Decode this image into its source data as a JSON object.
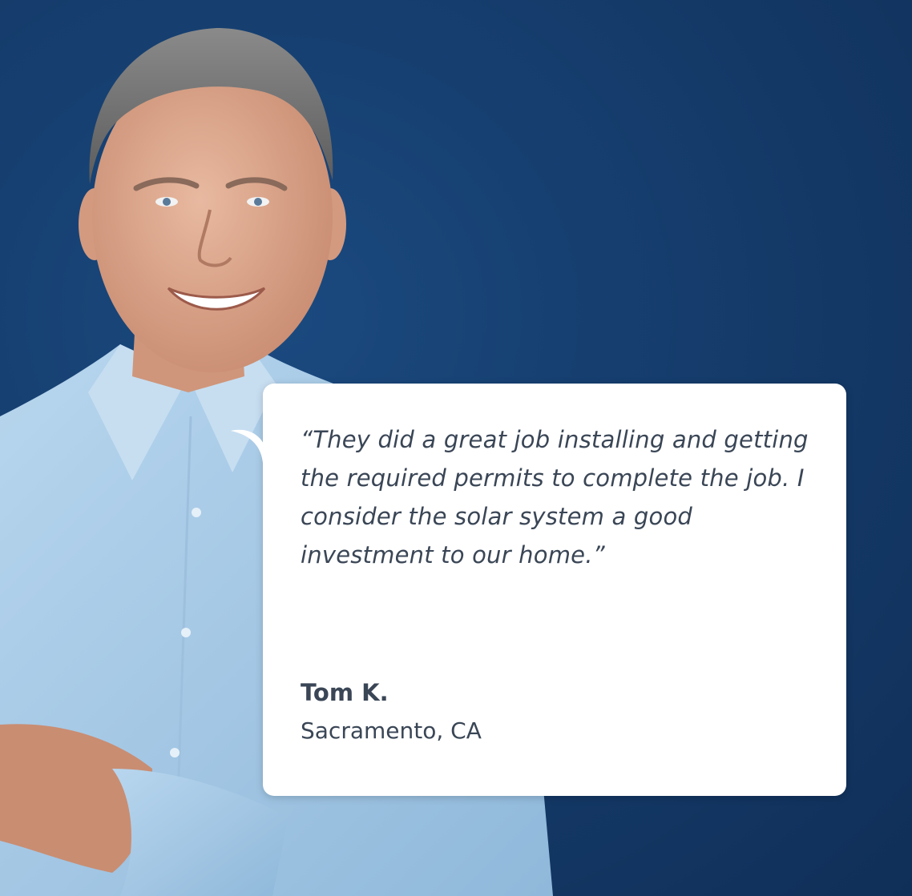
{
  "colors": {
    "background": "#163f70",
    "card": "#ffffff",
    "text": "#3a4656",
    "shirt": "#a9cbe6"
  },
  "testimonial": {
    "quote": "“They did a great job installing and getting the required permits to complete the job. I consider the solar system a good investment to our home.”",
    "name": "Tom K.",
    "location": "Sacramento, CA"
  }
}
